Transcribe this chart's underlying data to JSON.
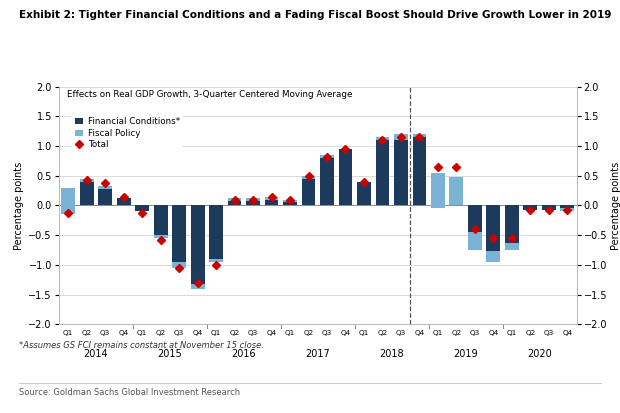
{
  "title": "Exhibit 2: Tighter Financial Conditions and a Fading Fiscal Boost Should Drive Growth Lower in 2019",
  "subtitle": "Effects on Real GDP Growth, 3-Quarter Centered Moving Average",
  "ylabel_left": "Percentage points",
  "ylabel_right": "Percentage points",
  "footnote": "*Assumes GS FCI remains constant at November 15 close.",
  "source": "Source: Goldman Sachs Global Investment Research",
  "legend_fc": "Financial Conditions*",
  "legend_fp": "Fiscal Policy",
  "legend_total": "Total",
  "color_fc": "#1b3a5c",
  "color_fp": "#7ab3d4",
  "color_total": "#cc0000",
  "ylim": [
    -2.0,
    2.0
  ],
  "yticks": [
    -2.0,
    -1.5,
    -1.0,
    -0.5,
    0.0,
    0.5,
    1.0,
    1.5,
    2.0
  ],
  "quarters": [
    "Q1",
    "Q2",
    "Q3",
    "Q4",
    "Q1",
    "Q2",
    "Q3",
    "Q4",
    "Q1",
    "Q2",
    "Q3",
    "Q4",
    "Q1",
    "Q2",
    "Q3",
    "Q4",
    "Q1",
    "Q2",
    "Q3",
    "Q4",
    "Q1",
    "Q2",
    "Q3",
    "Q4",
    "Q1",
    "Q2",
    "Q3",
    "Q4"
  ],
  "year_labels": [
    "2014",
    "2015",
    "2016",
    "2017",
    "2018",
    "2019",
    "2020"
  ],
  "year_mid_indices": [
    1.5,
    5.5,
    9.5,
    13.5,
    17.5,
    21.5,
    25.5
  ],
  "year_sep_indices": [
    3.5,
    7.5,
    11.5,
    15.5,
    19.5,
    23.5
  ],
  "dashed_line_x": 18.5,
  "financial_conditions": [
    0.3,
    0.4,
    0.28,
    0.12,
    -0.1,
    -0.55,
    -1.05,
    -1.4,
    -0.95,
    0.08,
    0.08,
    0.1,
    0.05,
    0.45,
    0.8,
    0.95,
    0.4,
    1.1,
    1.1,
    1.15,
    -0.05,
    0.0,
    -0.75,
    -0.95,
    -0.75,
    -0.08,
    -0.08,
    -0.05
  ],
  "fiscal_policy": [
    -0.45,
    0.05,
    0.05,
    0.0,
    0.0,
    0.05,
    0.1,
    0.08,
    0.05,
    0.05,
    0.05,
    0.05,
    0.05,
    0.05,
    0.05,
    0.0,
    0.0,
    0.05,
    0.1,
    0.05,
    0.6,
    0.48,
    0.3,
    0.18,
    0.12,
    0.0,
    0.0,
    -0.05
  ],
  "total": [
    -0.12,
    0.43,
    0.38,
    0.15,
    -0.12,
    -0.58,
    -1.05,
    -1.3,
    -1.0,
    0.1,
    0.1,
    0.15,
    0.1,
    0.5,
    0.82,
    0.95,
    0.4,
    1.1,
    1.15,
    1.15,
    0.65,
    0.65,
    -0.4,
    -0.55,
    -0.55,
    -0.08,
    -0.08,
    -0.08
  ]
}
